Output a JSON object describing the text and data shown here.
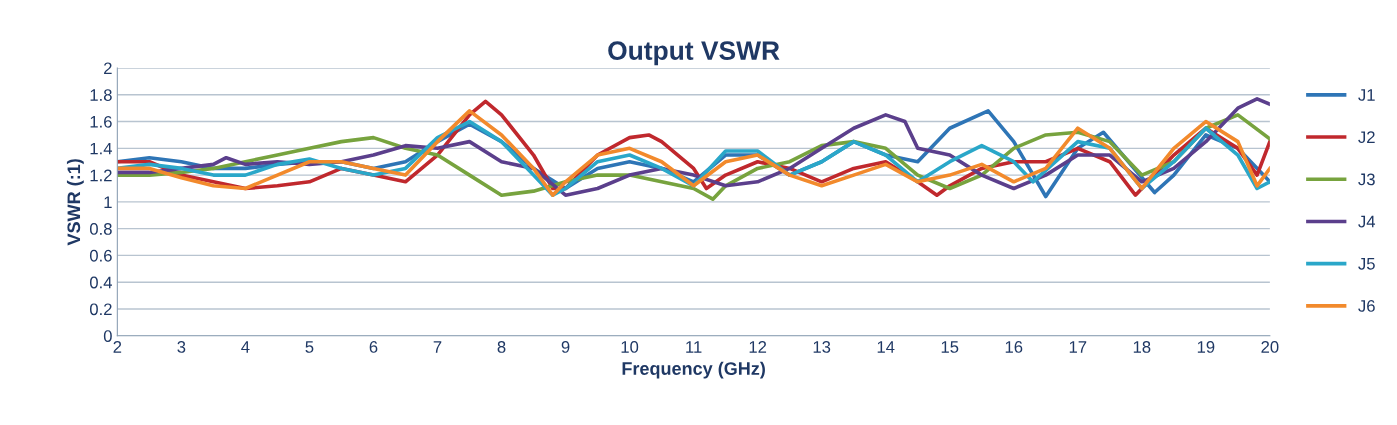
{
  "chart_data": {
    "type": "line",
    "title": "Output VSWR",
    "xlabel": "Frequency (GHz)",
    "ylabel": "VSWR (:1)",
    "xlim": [
      2,
      20
    ],
    "xticks": [
      2,
      3,
      4,
      5,
      6,
      7,
      8,
      9,
      10,
      11,
      12,
      13,
      14,
      15,
      16,
      17,
      18,
      19,
      20
    ],
    "ylim": [
      0,
      2
    ],
    "yticks": [
      0,
      0.2,
      0.4,
      0.6,
      0.8,
      1,
      1.2,
      1.4,
      1.6,
      1.8,
      2
    ],
    "grid": "y",
    "legend": "right",
    "marker": "none",
    "line_style": "solid",
    "series": [
      {
        "name": "J1",
        "color": "#2e75b6",
        "x": [
          2,
          2.5,
          3,
          3.5,
          4,
          4.5,
          5,
          5.5,
          6,
          6.5,
          7,
          7.5,
          8,
          8.5,
          9,
          9.5,
          10,
          10.5,
          11,
          11.5,
          12,
          12.5,
          13,
          13.5,
          14,
          14.5,
          15,
          15.6,
          16,
          16.5,
          17,
          17.4,
          18.2,
          18.5,
          19,
          19.5,
          20
        ],
        "values": [
          1.3,
          1.33,
          1.3,
          1.25,
          1.25,
          1.28,
          1.3,
          1.3,
          1.25,
          1.3,
          1.45,
          1.58,
          1.45,
          1.25,
          1.1,
          1.25,
          1.3,
          1.25,
          1.15,
          1.35,
          1.35,
          1.2,
          1.3,
          1.45,
          1.35,
          1.3,
          1.55,
          1.68,
          1.45,
          1.04,
          1.4,
          1.52,
          1.07,
          1.2,
          1.5,
          1.4,
          1.15
        ]
      },
      {
        "name": "J2",
        "color": "#c0282d",
        "x": [
          2,
          2.5,
          3,
          3.5,
          4,
          4.5,
          5,
          5.5,
          6,
          6.5,
          7,
          7.5,
          7.75,
          8,
          8.5,
          8.8,
          9,
          9.5,
          10,
          10.3,
          10.5,
          11,
          11.2,
          11.5,
          12,
          12.5,
          13,
          13.5,
          14,
          14.5,
          14.8,
          15,
          15.5,
          16,
          16.5,
          17,
          17.5,
          17.9,
          18,
          18.5,
          19,
          19.5,
          19.8,
          20
        ],
        "values": [
          1.3,
          1.3,
          1.2,
          1.15,
          1.1,
          1.12,
          1.15,
          1.25,
          1.2,
          1.15,
          1.35,
          1.65,
          1.75,
          1.65,
          1.35,
          1.1,
          1.1,
          1.35,
          1.48,
          1.5,
          1.45,
          1.25,
          1.1,
          1.2,
          1.3,
          1.25,
          1.15,
          1.25,
          1.3,
          1.15,
          1.05,
          1.12,
          1.25,
          1.3,
          1.3,
          1.4,
          1.3,
          1.05,
          1.1,
          1.35,
          1.55,
          1.4,
          1.2,
          1.45
        ]
      },
      {
        "name": "J3",
        "color": "#77a33e",
        "x": [
          2,
          2.5,
          3,
          3.5,
          4,
          4.5,
          5,
          5.5,
          6,
          6.5,
          7,
          7.5,
          8,
          8.5,
          9,
          9.5,
          10,
          10.5,
          11,
          11.3,
          11.5,
          12,
          12.5,
          13,
          13.5,
          14,
          14.5,
          15,
          15.5,
          16,
          16.5,
          17,
          17.5,
          18,
          18.5,
          19,
          19.5,
          20
        ],
        "values": [
          1.2,
          1.2,
          1.22,
          1.25,
          1.3,
          1.35,
          1.4,
          1.45,
          1.48,
          1.4,
          1.35,
          1.2,
          1.05,
          1.08,
          1.15,
          1.2,
          1.2,
          1.15,
          1.1,
          1.02,
          1.12,
          1.25,
          1.3,
          1.42,
          1.45,
          1.4,
          1.2,
          1.1,
          1.2,
          1.4,
          1.5,
          1.52,
          1.45,
          1.2,
          1.3,
          1.55,
          1.65,
          1.47
        ]
      },
      {
        "name": "J4",
        "color": "#5b3f8c",
        "x": [
          2,
          2.5,
          3,
          3.5,
          3.7,
          4,
          4.5,
          5,
          5.5,
          6,
          6.5,
          7,
          7.5,
          8,
          8.5,
          9,
          9.5,
          10,
          10.5,
          11,
          11.5,
          12,
          12.5,
          13,
          13.5,
          14,
          14.3,
          14.5,
          15,
          15.5,
          16,
          16.5,
          17,
          17.5,
          18,
          18.5,
          19,
          19.5,
          19.8,
          20
        ],
        "values": [
          1.22,
          1.22,
          1.25,
          1.28,
          1.33,
          1.28,
          1.3,
          1.28,
          1.3,
          1.35,
          1.42,
          1.4,
          1.45,
          1.3,
          1.25,
          1.05,
          1.1,
          1.2,
          1.25,
          1.2,
          1.12,
          1.15,
          1.25,
          1.4,
          1.55,
          1.65,
          1.6,
          1.4,
          1.35,
          1.2,
          1.1,
          1.2,
          1.35,
          1.35,
          1.15,
          1.25,
          1.45,
          1.7,
          1.77,
          1.73
        ]
      },
      {
        "name": "J5",
        "color": "#2aa7c9",
        "x": [
          2,
          2.5,
          3,
          3.5,
          4,
          4.5,
          5,
          5.5,
          6,
          6.5,
          7,
          7.5,
          8,
          8.5,
          8.8,
          9,
          9.5,
          10,
          10.5,
          11,
          11.5,
          12,
          12.5,
          13,
          13.5,
          14,
          14.5,
          15,
          15.5,
          16,
          16.3,
          17,
          17.5,
          18,
          18.5,
          19,
          19.5,
          19.8,
          20
        ],
        "values": [
          1.25,
          1.28,
          1.25,
          1.2,
          1.2,
          1.28,
          1.32,
          1.25,
          1.2,
          1.25,
          1.48,
          1.6,
          1.45,
          1.2,
          1.05,
          1.1,
          1.3,
          1.35,
          1.25,
          1.12,
          1.38,
          1.38,
          1.2,
          1.3,
          1.45,
          1.35,
          1.15,
          1.3,
          1.42,
          1.3,
          1.15,
          1.45,
          1.4,
          1.1,
          1.3,
          1.55,
          1.35,
          1.1,
          1.15
        ]
      },
      {
        "name": "J6",
        "color": "#f28a2c",
        "x": [
          2,
          2.5,
          3,
          3.5,
          4,
          4.5,
          5,
          5.5,
          6,
          6.5,
          7,
          7.5,
          8,
          8.5,
          8.8,
          9,
          9.5,
          10,
          10.5,
          11,
          11.5,
          12,
          12.5,
          13,
          13.5,
          14,
          14.5,
          15,
          15.5,
          16,
          16.5,
          17,
          17.5,
          18,
          18.5,
          19,
          19.5,
          19.8,
          20
        ],
        "values": [
          1.25,
          1.25,
          1.18,
          1.12,
          1.1,
          1.2,
          1.3,
          1.3,
          1.25,
          1.2,
          1.45,
          1.68,
          1.5,
          1.25,
          1.05,
          1.15,
          1.35,
          1.4,
          1.3,
          1.12,
          1.3,
          1.35,
          1.2,
          1.12,
          1.2,
          1.28,
          1.15,
          1.2,
          1.28,
          1.15,
          1.25,
          1.55,
          1.4,
          1.1,
          1.4,
          1.6,
          1.45,
          1.12,
          1.25
        ]
      }
    ]
  }
}
